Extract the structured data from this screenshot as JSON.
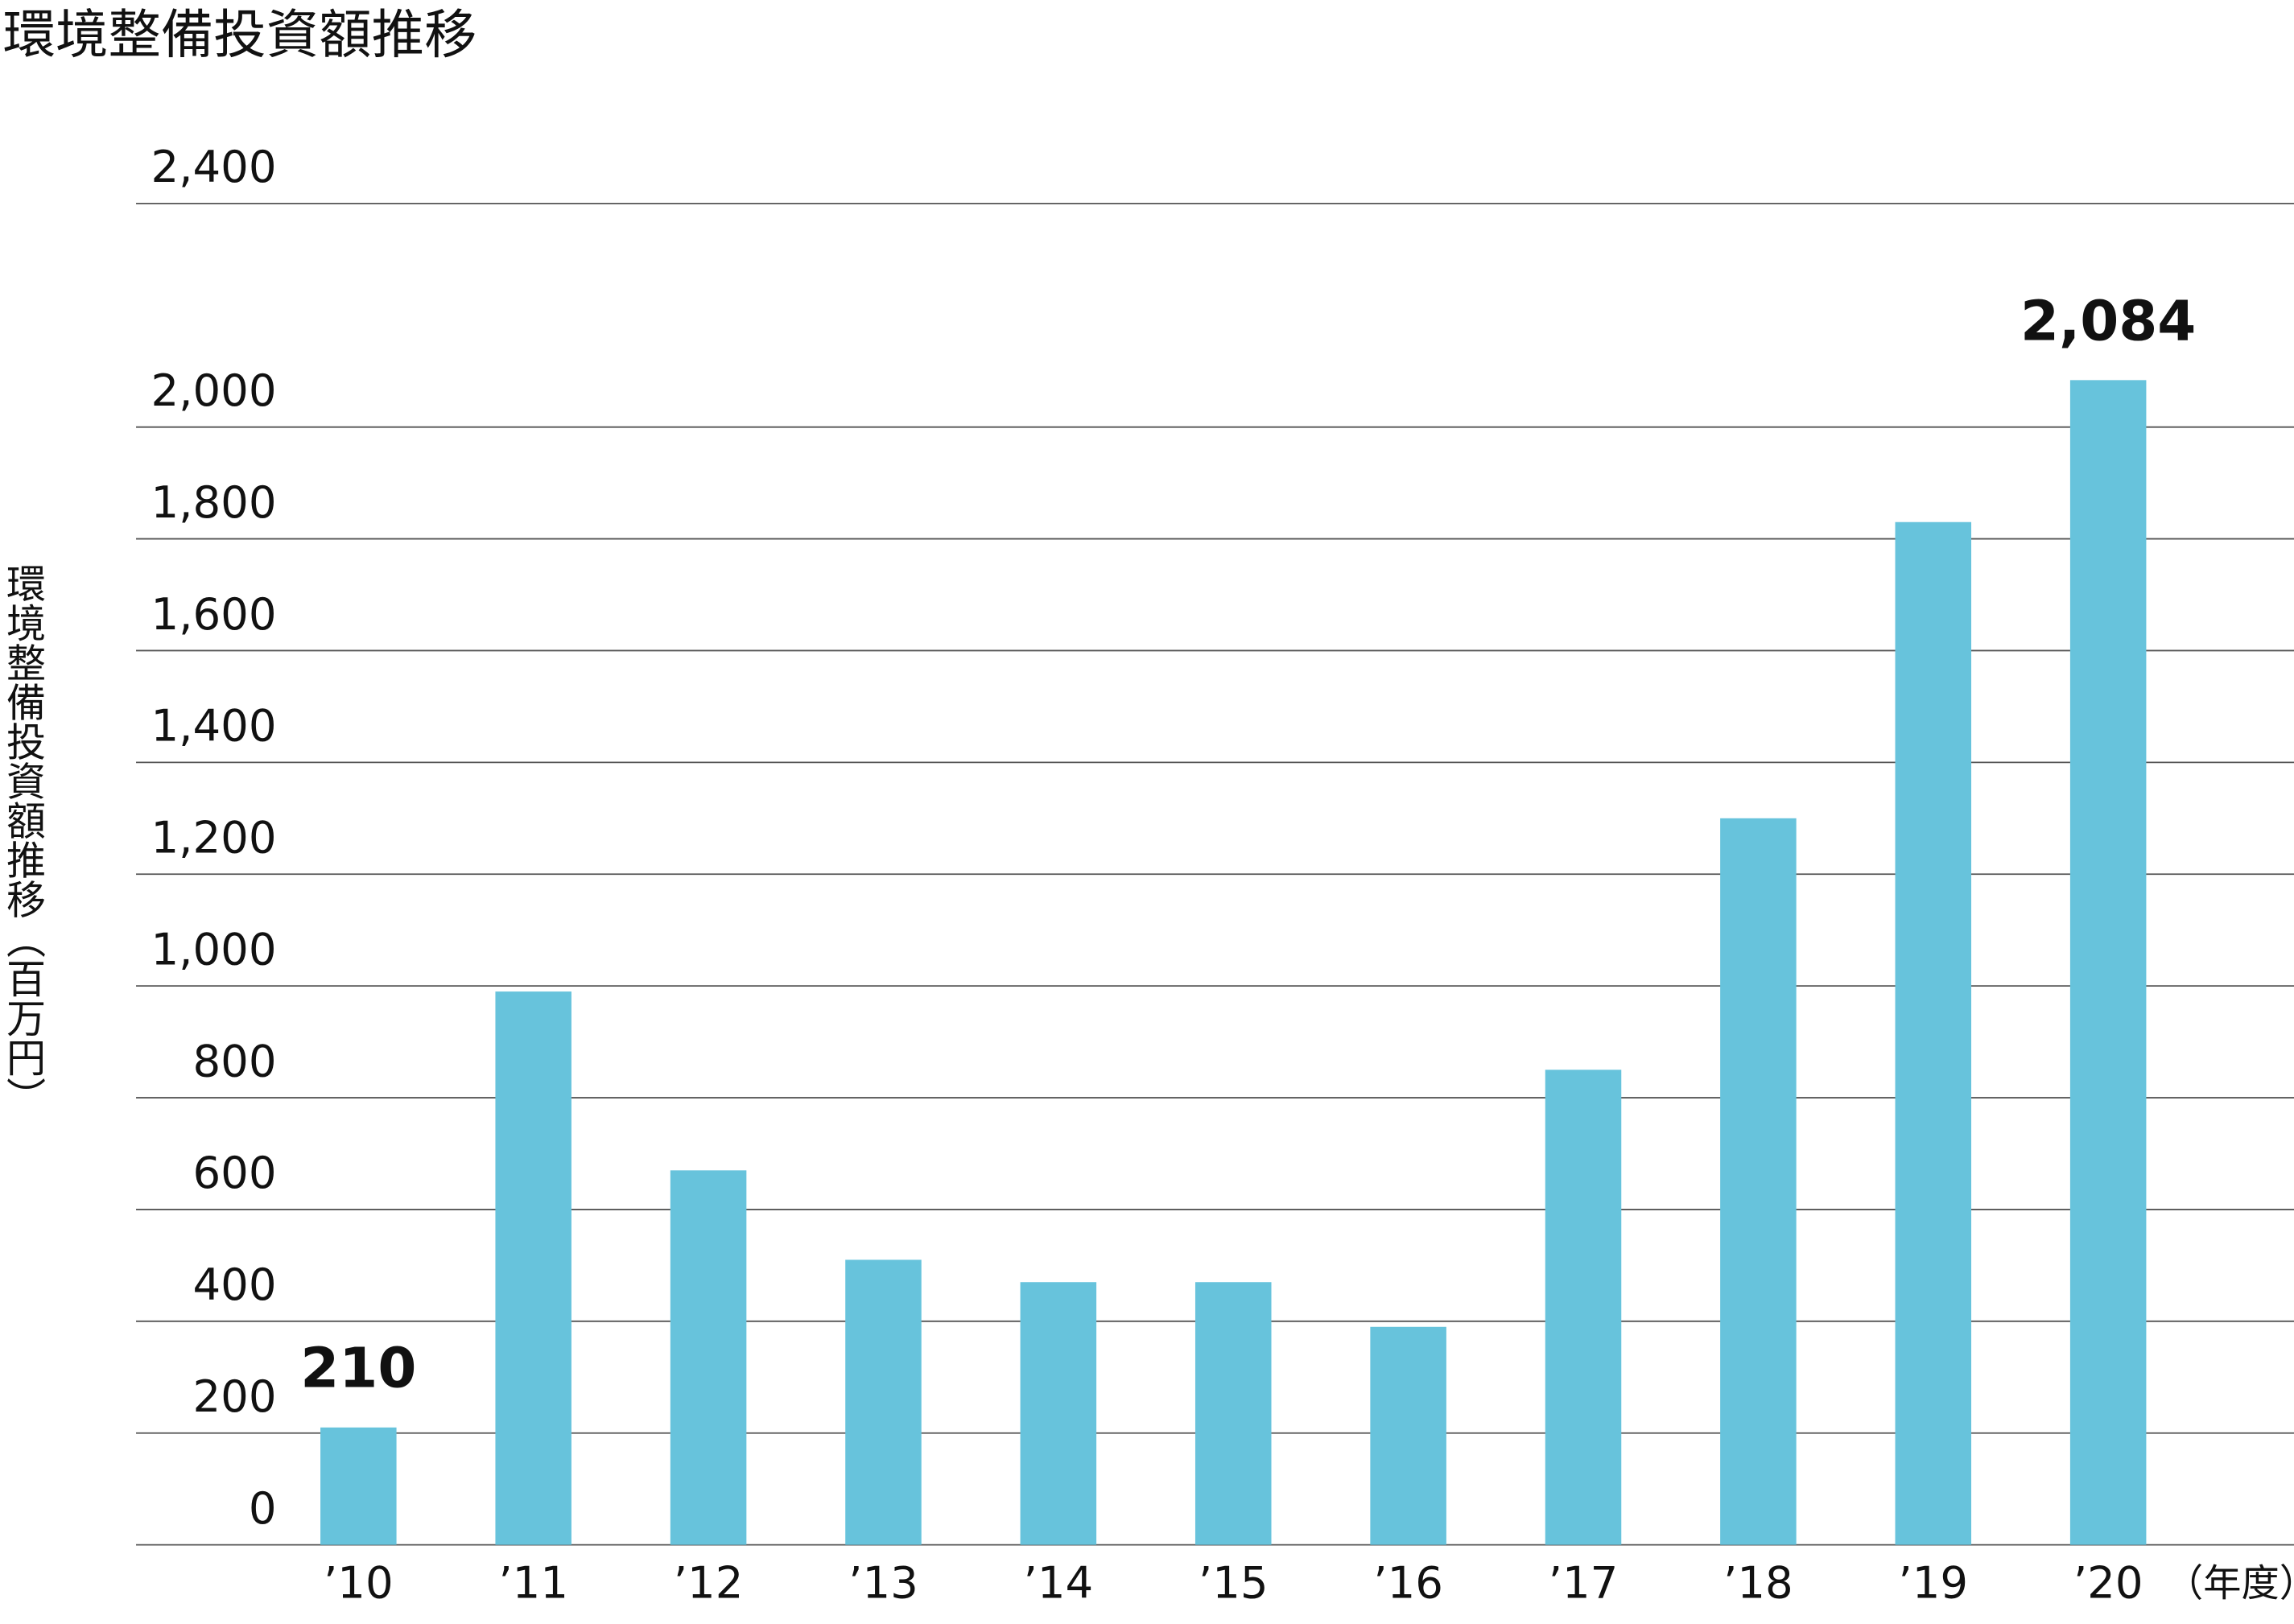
{
  "chart_data": {
    "type": "bar",
    "title": "環境整備投資額推移",
    "y_label": "環境整備投資額推移（百万円）",
    "x_unit": "（年度）",
    "categories": [
      "’10",
      "’11",
      "’12",
      "’13",
      "’14",
      "’15",
      "’16",
      "’17",
      "’18",
      "’19",
      "’20"
    ],
    "values": [
      210,
      990,
      670,
      510,
      470,
      470,
      390,
      850,
      1300,
      1830,
      2084
    ],
    "value_labels": [
      "210",
      null,
      null,
      null,
      null,
      null,
      null,
      null,
      null,
      null,
      "2,084"
    ],
    "color": "#67c3dc",
    "ylim": [
      0,
      2400
    ],
    "yticks": [
      0,
      200,
      400,
      600,
      800,
      {
        "value": 1000,
        "label": "1,000"
      },
      {
        "value": 1200,
        "label": "1,200"
      },
      {
        "value": 1400,
        "label": "1,400"
      },
      {
        "value": 1600,
        "label": "1,600"
      },
      {
        "value": 1800,
        "label": "1,800"
      },
      {
        "value": 2000,
        "label": "2,000"
      },
      {
        "value": 2400,
        "label": "2,400"
      }
    ],
    "grid": true
  }
}
